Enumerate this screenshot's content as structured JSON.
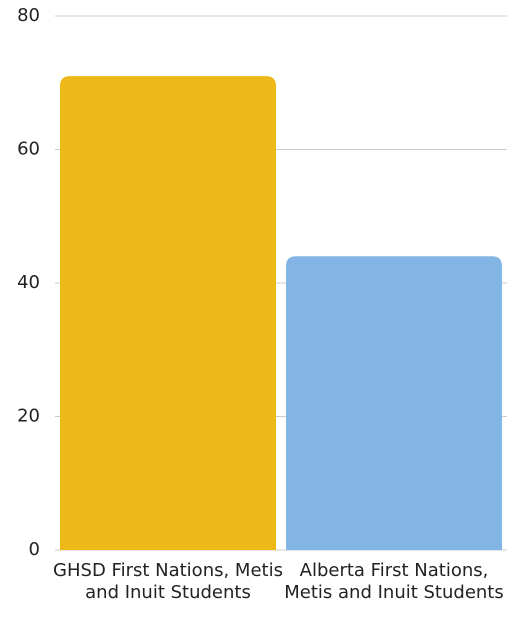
{
  "chart_data": {
    "type": "bar",
    "categories": [
      "GHSD First Nations, Metis and Inuit Students",
      "Alberta First Nations, Metis and Inuit Students"
    ],
    "values": [
      71,
      44
    ],
    "colors": [
      "#ecb918",
      "#82b5e3"
    ],
    "ylim": [
      0,
      80
    ],
    "yticks": [
      0,
      20,
      40,
      60,
      80
    ],
    "grid": true
  }
}
